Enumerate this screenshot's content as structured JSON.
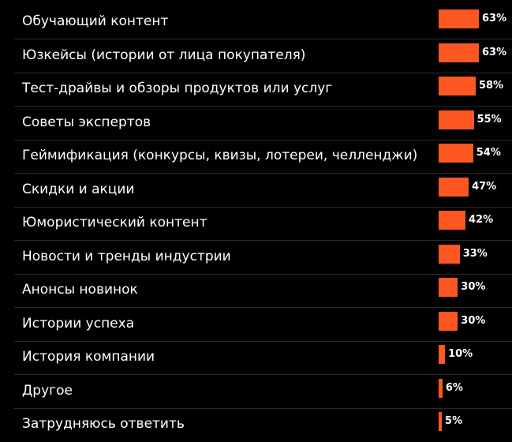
{
  "chart_data": {
    "type": "bar",
    "orientation": "horizontal",
    "categories": [
      "Обучающий контент",
      "Юзкейсы (истории  от лица покупателя)",
      "Тест-драйвы и обзоры продуктов или услуг",
      "Советы экспертов",
      "Геймификация (конкурсы, квизы, лотереи, челленджи)",
      "Скидки и акции",
      "Юмористический контент",
      "Новости и тренды индустрии",
      "Анонсы новинок",
      "Истории успеха",
      "История компании",
      "Другое",
      "Затрудняюсь ответить"
    ],
    "values": [
      63,
      63,
      58,
      55,
      54,
      47,
      42,
      33,
      30,
      30,
      10,
      6,
      5
    ],
    "value_labels": [
      "63%",
      "63%",
      "58%",
      "55%",
      "54%",
      "47%",
      "42%",
      "33%",
      "30%",
      "30%",
      "10%",
      "6%",
      "5%"
    ],
    "unit": "%",
    "xlim": [
      0,
      100
    ],
    "grid": false,
    "bar_color": "#ff5722",
    "background": "#000000",
    "text_color": "#ffffff"
  }
}
